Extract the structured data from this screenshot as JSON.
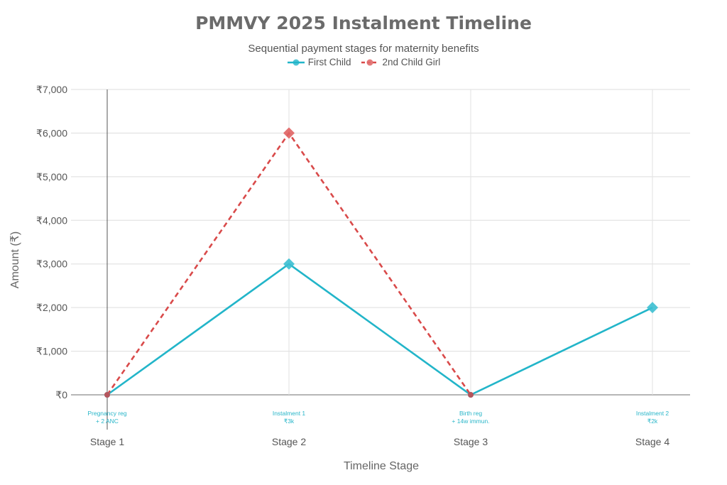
{
  "chart_data": {
    "type": "line",
    "title": "PMMVY 2025 Instalment Timeline",
    "subtitle": "Sequential payment stages for maternity benefits",
    "xlabel": "Timeline Stage",
    "ylabel": "Amount (₹)",
    "categories": [
      "Stage 1",
      "Stage 2",
      "Stage 3",
      "Stage 4"
    ],
    "ylim": [
      0,
      7000
    ],
    "yticks": [
      0,
      1000,
      2000,
      3000,
      4000,
      5000,
      6000,
      7000
    ],
    "ytick_labels": [
      "₹0",
      "₹1,000",
      "₹2,000",
      "₹3,000",
      "₹4,000",
      "₹5,000",
      "₹6,000",
      "₹7,000"
    ],
    "series": [
      {
        "name": "First Child",
        "values": [
          0,
          3000,
          0,
          2000
        ],
        "color": "#22b5c9",
        "dash": "solid"
      },
      {
        "name": "2nd Child Girl",
        "values": [
          0,
          6000,
          0,
          null
        ],
        "color": "#d94a4a",
        "dash": "dash"
      }
    ],
    "annotations": [
      {
        "line1": "Pregnancy reg",
        "line2": "+ 2 ANC"
      },
      {
        "line1": "Instalment 1",
        "line2": "₹3k"
      },
      {
        "line1": "Birth reg",
        "line2": "+ 14w immun."
      },
      {
        "line1": "Instalment 2",
        "line2": "₹2k"
      }
    ]
  }
}
